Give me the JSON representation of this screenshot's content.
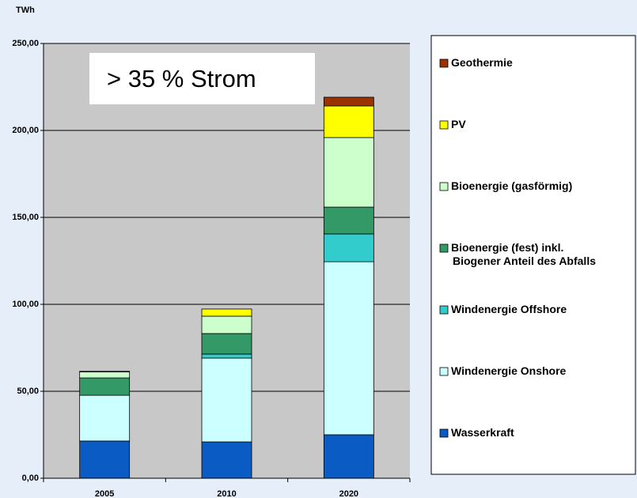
{
  "chart_data": {
    "type": "stacked-bar",
    "unit_label": "TWh",
    "annotation": "> 35 % Strom",
    "categories": [
      "2005",
      "2010",
      "2020"
    ],
    "series": [
      {
        "name": "Wasserkraft",
        "color": "#0a5bc4",
        "values": [
          21.4,
          20.9,
          25
        ]
      },
      {
        "name": "Windenergie Onshore",
        "color": "#ccffff",
        "values": [
          26.3,
          48.2,
          99.5
        ]
      },
      {
        "name": "Windenergie Offshore",
        "color": "#33cccc",
        "values": [
          0,
          2.3,
          16
        ]
      },
      {
        "name": "Bioenergie (fest) inkl.\nBiogener Anteil des Abfalls",
        "color": "#339966",
        "values": [
          10,
          11.8,
          15.4
        ]
      },
      {
        "name": "Bioenergie (gasförmig)",
        "color": "#ccffcc",
        "values": [
          3.5,
          10,
          40
        ]
      },
      {
        "name": "PV",
        "color": "#ffff00",
        "values": [
          0.3,
          4.1,
          18.2
        ]
      },
      {
        "name": "Geothermie",
        "color": "#993300",
        "values": [
          0,
          0,
          5
        ]
      }
    ],
    "ylim": [
      0,
      250
    ],
    "yticks": [
      {
        "value": 0,
        "label": "0,00"
      },
      {
        "value": 50,
        "label": "50,00"
      },
      {
        "value": 100,
        "label": "100,00"
      },
      {
        "value": 150,
        "label": "150,00"
      },
      {
        "value": 200,
        "label": "200,00"
      },
      {
        "value": 250,
        "label": "250,00"
      }
    ],
    "grid": true
  }
}
